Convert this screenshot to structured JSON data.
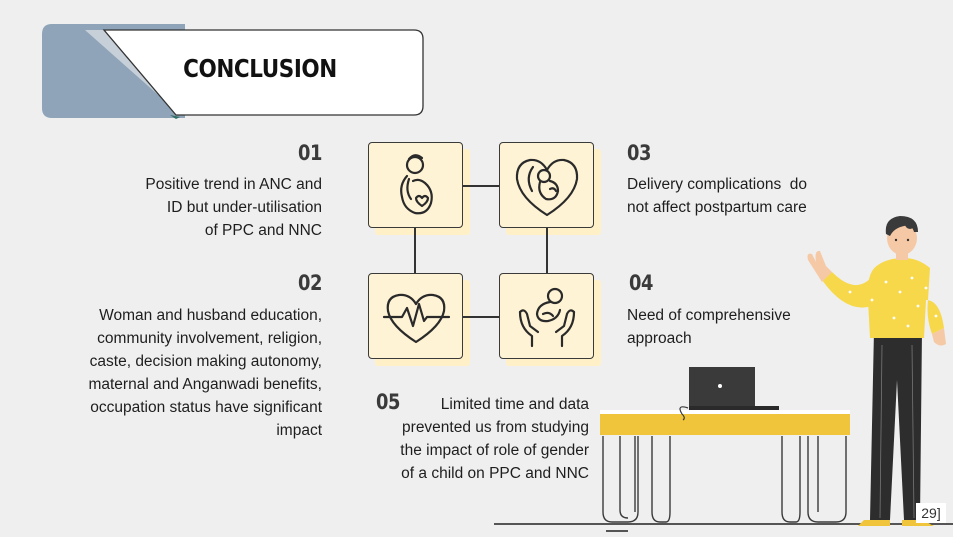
{
  "title": "CONCLUSION",
  "items": [
    {
      "number": "01",
      "lines": [
        "Positive trend in ANC and",
        "ID but under-utilisation",
        "of PPC and NNC"
      ]
    },
    {
      "number": "02",
      "lines": [
        "Woman and husband education,",
        "community involvement, religion,",
        "caste, decision making autonomy,",
        "maternal and Anganwadi benefits,",
        "occupation status have significant",
        "impact"
      ]
    },
    {
      "number": "03",
      "lines": [
        "Delivery complications  do",
        "not affect postpartum care"
      ]
    },
    {
      "number": "04",
      "lines": [
        "Need of comprehensive",
        "approach"
      ]
    },
    {
      "number": "05",
      "lines": [
        "Limited time and data",
        "prevented us from studying",
        "the impact of role of gender",
        "of a child on PPC and NNC"
      ]
    }
  ],
  "icons": [
    "pregnant-mother-icon",
    "baby-in-heart-icon",
    "heartbeat-icon",
    "baby-in-hands-icon"
  ],
  "page_number": "29]",
  "colors": {
    "background": "#efefef",
    "banner_blue": "#8fa4b8",
    "icon_bg": "#fff3d5",
    "desk_yellow": "#f0c53c",
    "shirt_yellow": "#f7d84a"
  }
}
